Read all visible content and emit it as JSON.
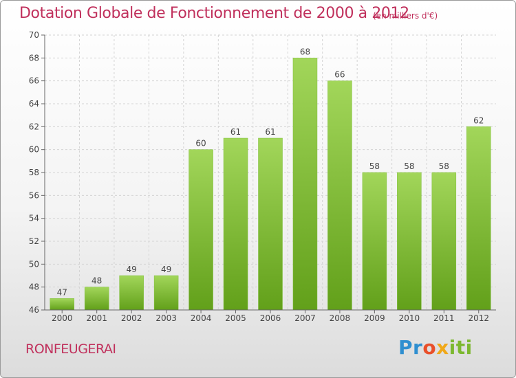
{
  "title": "Dotation Globale de Fonctionnement de 2000 à 2012",
  "subtitle": "(en milliers d'€)",
  "town": "RONFEUGERAI",
  "logo": {
    "p1": "Pr",
    "p2": "o",
    "p3": "x",
    "p4": "iti"
  },
  "colors": {
    "bar_top": "#a2d65a",
    "bar_bottom": "#62a01a",
    "title": "#c0305c"
  },
  "chart_data": {
    "type": "bar",
    "categories": [
      "2000",
      "2001",
      "2002",
      "2003",
      "2004",
      "2005",
      "2006",
      "2007",
      "2008",
      "2009",
      "2010",
      "2011",
      "2012"
    ],
    "values": [
      47,
      48,
      49,
      49,
      60,
      61,
      61,
      68,
      66,
      58,
      58,
      58,
      62
    ],
    "ylim": [
      46,
      70
    ],
    "yticks": [
      46,
      48,
      50,
      52,
      54,
      56,
      58,
      60,
      62,
      64,
      66,
      68,
      70
    ],
    "grid": true
  }
}
